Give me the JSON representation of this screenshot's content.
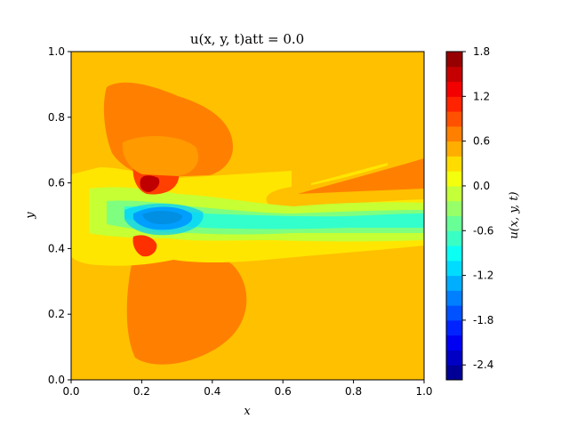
{
  "chart_data": {
    "type": "contourf",
    "title": "u(x, y, t)att = 0.0",
    "xlabel": "x",
    "ylabel": "y",
    "xlim": [
      0.0,
      1.0
    ],
    "ylim": [
      0.0,
      1.0
    ],
    "x_ticks": [
      "0.0",
      "0.2",
      "0.4",
      "0.6",
      "0.8",
      "1.0"
    ],
    "y_ticks": [
      "0.0",
      "0.2",
      "0.4",
      "0.6",
      "0.8",
      "1.0"
    ],
    "grid": false,
    "colormap": "jet",
    "background_level_color": "#ffc000",
    "colorbar": {
      "label": "u(x, y, t)",
      "range": [
        -2.6,
        1.8
      ],
      "levels": 22,
      "tick_labels": [
        "1.8",
        "1.2",
        "0.6",
        "0.0",
        "-0.6",
        "-1.2",
        "-1.8",
        "-2.4"
      ],
      "tick_values": [
        1.8,
        1.2,
        0.6,
        0.0,
        -0.6,
        -1.2,
        -1.8,
        -2.4
      ]
    }
  }
}
